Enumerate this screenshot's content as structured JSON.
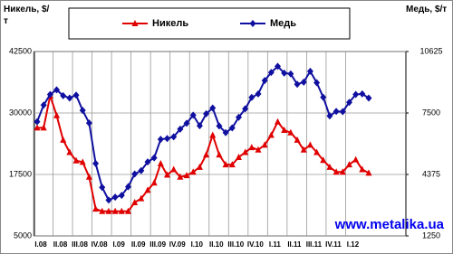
{
  "chart_data": {
    "type": "line",
    "y_label": "Никель, $/т",
    "y2_label": "Медь, $/т",
    "watermark": "www.metalika.ua",
    "categories": [
      "I.08",
      null,
      null,
      "II.08",
      null,
      null,
      "III.08",
      null,
      null,
      "IV.08",
      null,
      null,
      "I.09",
      null,
      null,
      "II.09",
      null,
      null,
      "III.09",
      null,
      null,
      "IV.09",
      null,
      null,
      "I.10",
      null,
      null,
      "II.10",
      null,
      null,
      "III.10",
      null,
      null,
      "IV.10",
      null,
      null,
      "I.11",
      null,
      null,
      "II.11",
      null,
      null,
      "III.11",
      null,
      null,
      "IV.11",
      null,
      null,
      "I.12",
      null,
      null,
      null
    ],
    "series": [
      {
        "name": "Никель",
        "color": "#e00000",
        "marker": "triangle",
        "values": [
          27000,
          27000,
          33500,
          29500,
          24500,
          22000,
          20300,
          20000,
          17000,
          10500,
          10000,
          10000,
          10000,
          10000,
          10000,
          11800,
          12600,
          14300,
          15800,
          19700,
          17400,
          18500,
          17000,
          17300,
          18000,
          19000,
          21500,
          25500,
          21500,
          19500,
          19500,
          21000,
          22000,
          23000,
          22500,
          23500,
          25500,
          28200,
          26500,
          26000,
          24500,
          22500,
          23500,
          22000,
          20400,
          19000,
          18000,
          18000,
          19500,
          20500,
          18500,
          17800
        ]
      },
      {
        "name": "Медь",
        "color": "#1010a0",
        "marker": "diamond",
        "axis": "y2",
        "values": [
          7060,
          7900,
          8440,
          8680,
          8380,
          8260,
          8410,
          7630,
          6990,
          4930,
          3720,
          3070,
          3220,
          3310,
          3750,
          4400,
          4570,
          5010,
          5220,
          6160,
          6200,
          6290,
          6680,
          6980,
          7390,
          6850,
          7460,
          7750,
          6840,
          6500,
          6740,
          7280,
          7710,
          8290,
          8470,
          9150,
          9560,
          9870,
          9530,
          9490,
          8960,
          9070,
          9620,
          9040,
          8300,
          7350,
          7580,
          7570,
          8040,
          8440,
          8470,
          8260
        ]
      }
    ],
    "ylim": [
      5000,
      42500
    ],
    "yticks": [
      5000,
      17500,
      30000,
      42500
    ],
    "y2lim": [
      1250,
      10625
    ],
    "y2ticks": [
      1250,
      4375,
      7500,
      10625
    ],
    "grid": true
  }
}
